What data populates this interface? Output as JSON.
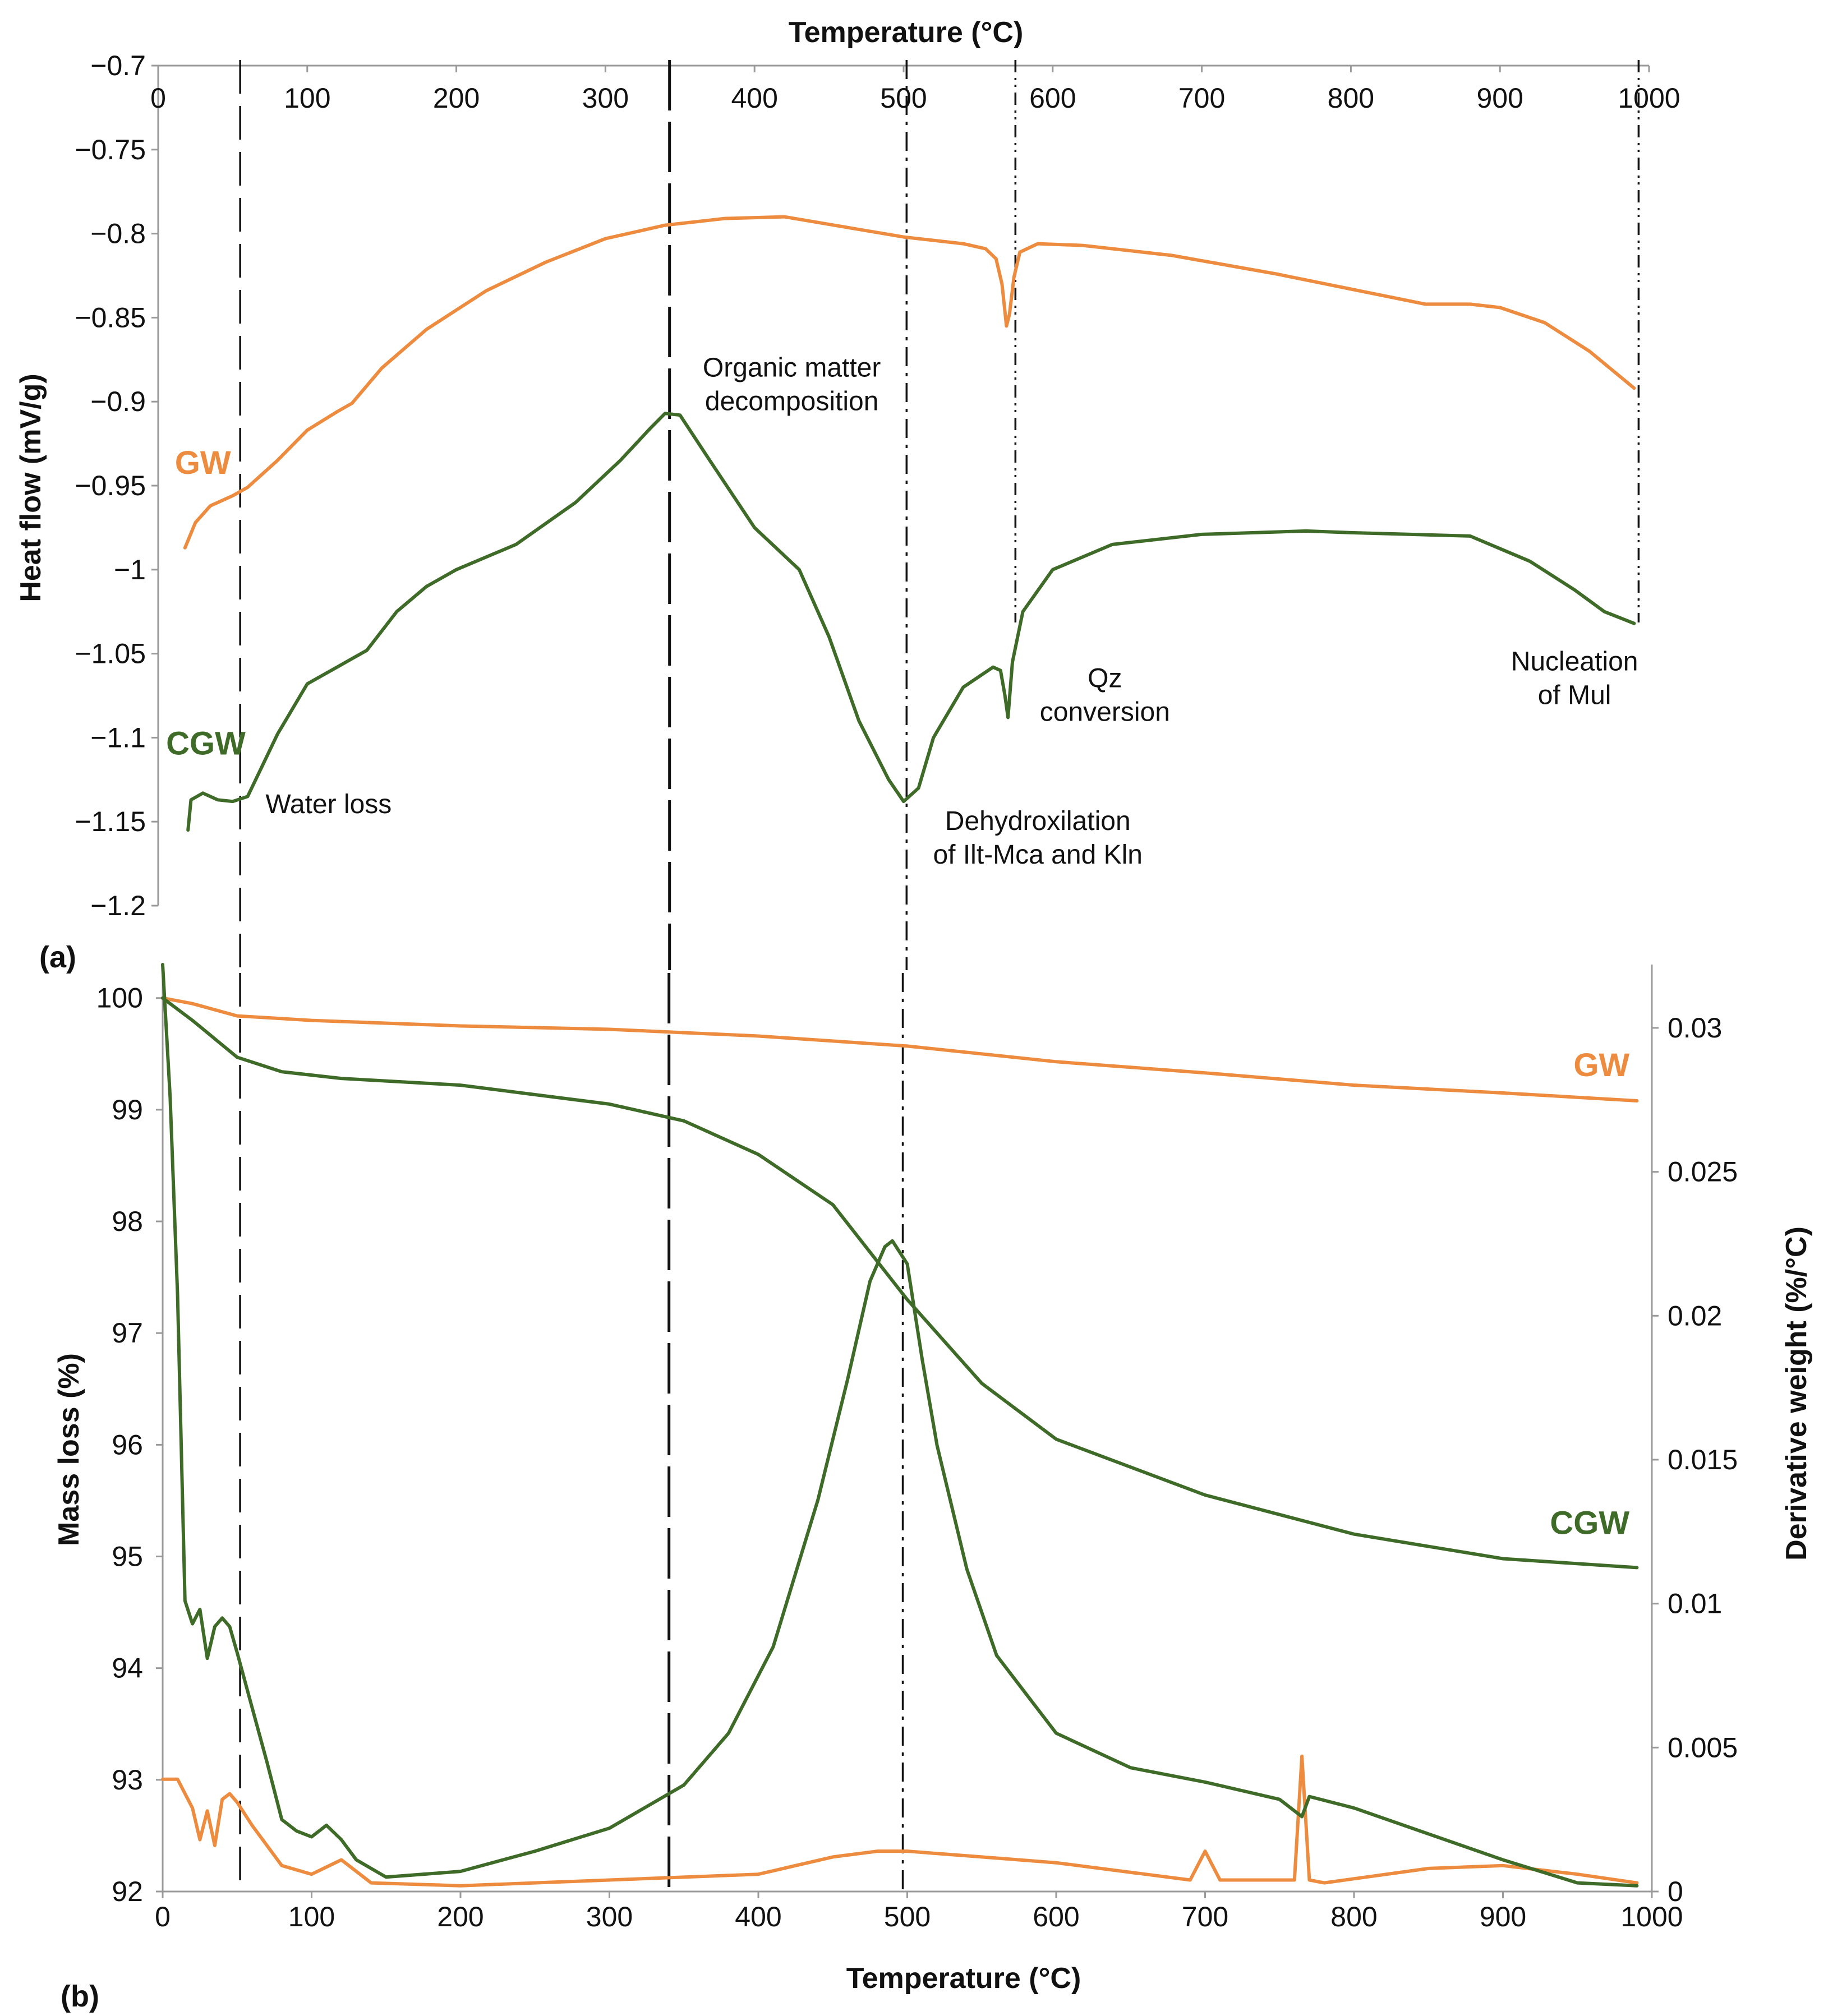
{
  "colors": {
    "GW": "#ed8b3f",
    "CGW": "#3e6b27",
    "axis": "#9a9a9a",
    "marker": "#111111"
  },
  "panel_labels": {
    "a": "(a)",
    "b": "(b)"
  },
  "chart_data": [
    {
      "id": "a",
      "type": "line",
      "title": "",
      "xlabel": "Temperature (°C)",
      "ylabel": "Heat flow (mV/g)",
      "xlim": [
        0,
        1000
      ],
      "ylim": [
        -1.2,
        -0.7
      ],
      "xticks": [
        0,
        100,
        200,
        300,
        400,
        500,
        600,
        700,
        800,
        900,
        1000
      ],
      "xtick_labels": [
        "0",
        "100",
        "200",
        "300",
        "400",
        "500",
        "600",
        "700",
        "800",
        "900",
        "1000"
      ],
      "yticks": [
        -0.7,
        -0.75,
        -0.8,
        -0.85,
        -0.9,
        -0.95,
        -1.0,
        -1.05,
        -1.1,
        -1.15,
        -1.2
      ],
      "ytick_labels": [
        "−0.7",
        "−0.75",
        "−0.8",
        "−0.85",
        "−0.9",
        "−0.95",
        "−1",
        "−1.05",
        "−1.1",
        "−1.15",
        "−1.2"
      ],
      "series": [
        {
          "name": "GW",
          "label": "GW",
          "x": [
            18,
            25,
            35,
            50,
            60,
            80,
            100,
            120,
            130,
            150,
            180,
            220,
            260,
            300,
            340,
            380,
            420,
            460,
            500,
            540,
            555,
            562,
            566,
            569,
            571,
            574,
            578,
            590,
            620,
            680,
            750,
            800,
            850,
            880,
            900,
            930,
            960,
            990
          ],
          "y": [
            -0.987,
            -0.972,
            -0.962,
            -0.956,
            -0.951,
            -0.935,
            -0.917,
            -0.906,
            -0.901,
            -0.88,
            -0.857,
            -0.834,
            -0.817,
            -0.803,
            -0.795,
            -0.791,
            -0.79,
            -0.796,
            -0.802,
            -0.806,
            -0.809,
            -0.815,
            -0.83,
            -0.855,
            -0.848,
            -0.826,
            -0.811,
            -0.806,
            -0.807,
            -0.813,
            -0.824,
            -0.833,
            -0.842,
            -0.842,
            -0.844,
            -0.853,
            -0.87,
            -0.892
          ]
        },
        {
          "name": "CGW",
          "label": "CGW",
          "x": [
            20,
            22,
            30,
            40,
            50,
            60,
            80,
            100,
            120,
            140,
            160,
            180,
            200,
            240,
            280,
            310,
            330,
            340,
            350,
            370,
            400,
            430,
            450,
            470,
            490,
            500,
            510,
            520,
            540,
            560,
            565,
            568,
            570,
            573,
            580,
            600,
            640,
            700,
            770,
            800,
            880,
            920,
            950,
            970,
            990
          ],
          "y": [
            -1.155,
            -1.137,
            -1.133,
            -1.137,
            -1.138,
            -1.135,
            -1.098,
            -1.068,
            -1.058,
            -1.048,
            -1.025,
            -1.01,
            -1.0,
            -0.985,
            -0.96,
            -0.935,
            -0.916,
            -0.907,
            -0.908,
            -0.935,
            -0.975,
            -1.0,
            -1.04,
            -1.09,
            -1.125,
            -1.138,
            -1.13,
            -1.1,
            -1.07,
            -1.058,
            -1.06,
            -1.075,
            -1.088,
            -1.055,
            -1.025,
            -1.0,
            -0.985,
            -0.979,
            -0.977,
            -0.978,
            -0.98,
            -0.995,
            -1.012,
            -1.025,
            -1.032
          ]
        }
      ],
      "markers": [
        {
          "x": 55,
          "style": "long-dash"
        },
        {
          "x": 343,
          "style": "long-dash-heavy"
        },
        {
          "x": 502,
          "style": "dash-dot"
        },
        {
          "x": 575,
          "style": "dash-dot-dot"
        },
        {
          "x": 993,
          "style": "dash-dot-dot"
        }
      ],
      "annotations": [
        {
          "lines": [
            "Water loss"
          ],
          "x": 72,
          "y": -1.145
        },
        {
          "lines": [
            "Organic matter",
            "decomposition"
          ],
          "x": 425,
          "y": -0.885
        },
        {
          "lines": [
            "Dehydroxilation",
            "of Ilt-Mca and Kln"
          ],
          "x": 590,
          "y": -1.155
        },
        {
          "lines": [
            "Qz",
            "conversion"
          ],
          "x": 635,
          "y": -1.07
        },
        {
          "lines": [
            "Nucleation",
            "of Mul"
          ],
          "x": 950,
          "y": -1.06
        }
      ],
      "series_labels": [
        {
          "text": "GW",
          "x": 30,
          "y": -0.943
        },
        {
          "text": "CGW",
          "x": 32,
          "y": -1.11
        }
      ]
    },
    {
      "id": "b",
      "type": "line",
      "title": "",
      "xlabel": "Temperature (°C)",
      "ylabel": "Mass loss (%)",
      "y2label": "Derivative weight (%/°C)",
      "xlim": [
        0,
        1000
      ],
      "ylim": [
        92,
        100.3
      ],
      "y2lim": [
        0,
        0.0322
      ],
      "xticks": [
        0,
        100,
        200,
        300,
        400,
        500,
        600,
        700,
        800,
        900,
        1000
      ],
      "xtick_labels": [
        "0",
        "100",
        "200",
        "300",
        "400",
        "500",
        "600",
        "700",
        "800",
        "900",
        "1000"
      ],
      "yticks": [
        92,
        93,
        94,
        95,
        96,
        97,
        98,
        99,
        100
      ],
      "ytick_labels": [
        "92",
        "93",
        "94",
        "95",
        "96",
        "97",
        "98",
        "99",
        "100"
      ],
      "y2ticks": [
        0,
        0.005,
        0.01,
        0.015,
        0.02,
        0.025,
        0.03
      ],
      "y2tick_labels": [
        "0",
        "0.005",
        "0.01",
        "0.015",
        "0.02",
        "0.025",
        "0.03"
      ],
      "series": [
        {
          "name": "GW mass loss",
          "axis": "left",
          "x": [
            0,
            20,
            50,
            100,
            200,
            300,
            400,
            500,
            600,
            700,
            800,
            900,
            990
          ],
          "y": [
            100.0,
            99.95,
            99.84,
            99.8,
            99.75,
            99.72,
            99.66,
            99.57,
            99.43,
            99.33,
            99.22,
            99.15,
            99.08
          ]
        },
        {
          "name": "CGW mass loss",
          "axis": "left",
          "x": [
            0,
            20,
            50,
            80,
            120,
            200,
            300,
            350,
            400,
            450,
            500,
            550,
            600,
            700,
            800,
            900,
            990
          ],
          "y": [
            100.0,
            99.8,
            99.47,
            99.34,
            99.28,
            99.22,
            99.05,
            98.9,
            98.6,
            98.15,
            97.3,
            96.55,
            96.05,
            95.55,
            95.2,
            94.98,
            94.9
          ]
        },
        {
          "name": "GW derivative",
          "axis": "right",
          "x": [
            0,
            10,
            20,
            25,
            30,
            35,
            40,
            45,
            50,
            60,
            80,
            100,
            120,
            140,
            200,
            300,
            400,
            450,
            480,
            500,
            550,
            600,
            690,
            700,
            710,
            750,
            760,
            765,
            770,
            780,
            850,
            900,
            950,
            990
          ],
          "y": [
            0.0039,
            0.0039,
            0.0029,
            0.0018,
            0.0028,
            0.0016,
            0.0032,
            0.0034,
            0.0031,
            0.0023,
            0.0009,
            0.0006,
            0.0011,
            0.0003,
            0.0002,
            0.0004,
            0.0006,
            0.0012,
            0.0014,
            0.0014,
            0.0012,
            0.001,
            0.0004,
            0.0014,
            0.0004,
            0.0004,
            0.0004,
            0.0047,
            0.0004,
            0.0003,
            0.0008,
            0.0009,
            0.0006,
            0.0003
          ]
        },
        {
          "name": "CGW derivative",
          "axis": "right",
          "x": [
            0,
            5,
            10,
            15,
            20,
            25,
            30,
            35,
            40,
            45,
            50,
            60,
            70,
            80,
            90,
            100,
            110,
            120,
            130,
            150,
            200,
            250,
            300,
            350,
            380,
            410,
            440,
            460,
            475,
            485,
            490,
            500,
            510,
            520,
            540,
            560,
            600,
            650,
            700,
            750,
            765,
            770,
            800,
            850,
            900,
            950,
            990
          ],
          "y": [
            0.0322,
            0.0276,
            0.0207,
            0.0101,
            0.0093,
            0.0098,
            0.0081,
            0.0092,
            0.0095,
            0.0092,
            0.0083,
            0.0064,
            0.0045,
            0.0025,
            0.0021,
            0.0019,
            0.0023,
            0.0018,
            0.0011,
            0.0005,
            0.0007,
            0.0014,
            0.0022,
            0.0037,
            0.0055,
            0.0085,
            0.0136,
            0.0178,
            0.0212,
            0.0224,
            0.0226,
            0.0218,
            0.0185,
            0.0155,
            0.0112,
            0.0082,
            0.0055,
            0.0043,
            0.0038,
            0.0032,
            0.0026,
            0.0033,
            0.0029,
            0.002,
            0.0011,
            0.0003,
            0.0002
          ]
        }
      ],
      "markers": [
        {
          "x": 52,
          "style": "long-dash"
        },
        {
          "x": 340,
          "style": "long-dash-heavy"
        },
        {
          "x": 497,
          "style": "dash-dot"
        }
      ],
      "series_labels": [
        {
          "text": "GW",
          "x": 985,
          "y": 99.3,
          "series": "GW"
        },
        {
          "text": "CGW",
          "x": 985,
          "y": 95.2,
          "series": "CGW"
        }
      ]
    }
  ]
}
